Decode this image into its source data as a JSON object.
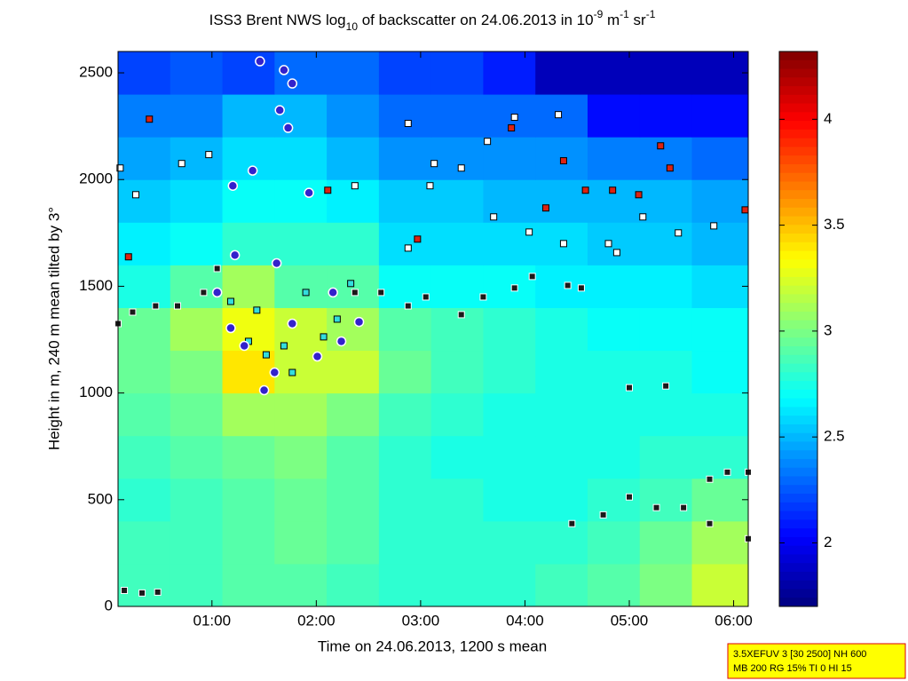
{
  "chart_data": {
    "type": "heatmap",
    "title_parts": [
      "ISS3 Brent NWS log",
      "10",
      " of backscatter on 24.06.2013 in 10",
      "-9",
      " m",
      "-1",
      " sr",
      "-1"
    ],
    "xlabel": "Time on 24.06.2013, 1200 s mean",
    "ylabel": "Height in m, 240 m mean tilted by 3°",
    "xlim": [
      0.1,
      6.14
    ],
    "ylim": [
      0,
      2600
    ],
    "xticks": [
      {
        "value": 1,
        "label": "01:00"
      },
      {
        "value": 2,
        "label": "02:00"
      },
      {
        "value": 3,
        "label": "03:00"
      },
      {
        "value": 4,
        "label": "04:00"
      },
      {
        "value": 5,
        "label": "05:00"
      },
      {
        "value": 6,
        "label": "06:00"
      }
    ],
    "yticks": [
      0,
      500,
      1000,
      1500,
      2000,
      2500
    ],
    "colormap": "jet",
    "clim": [
      1.7,
      4.32
    ],
    "cticks": [
      2,
      2.5,
      3,
      3.5,
      4
    ],
    "x_edges": [
      0.1,
      0.6,
      1.1,
      1.6,
      2.1,
      2.6,
      3.1,
      3.6,
      4.1,
      4.6,
      5.1,
      5.6,
      6.14
    ],
    "y_edges": [
      0,
      200,
      400,
      600,
      800,
      1000,
      1200,
      1400,
      1600,
      1800,
      2000,
      2200,
      2400,
      2600
    ],
    "z": [
      [
        2.85,
        2.85,
        2.9,
        2.9,
        2.85,
        2.8,
        2.8,
        2.8,
        2.85,
        2.9,
        3.0,
        3.2
      ],
      [
        2.85,
        2.85,
        2.9,
        2.95,
        2.9,
        2.8,
        2.8,
        2.8,
        2.8,
        2.85,
        2.95,
        3.1
      ],
      [
        2.8,
        2.85,
        2.9,
        2.95,
        2.9,
        2.8,
        2.8,
        2.75,
        2.75,
        2.8,
        2.85,
        2.95
      ],
      [
        2.85,
        2.9,
        2.95,
        3.0,
        2.9,
        2.8,
        2.75,
        2.75,
        2.75,
        2.75,
        2.8,
        2.8
      ],
      [
        2.9,
        2.95,
        3.1,
        3.1,
        3.0,
        2.85,
        2.8,
        2.75,
        2.75,
        2.75,
        2.75,
        2.75
      ],
      [
        2.95,
        3.0,
        3.4,
        3.2,
        3.2,
        2.95,
        2.85,
        2.8,
        2.75,
        2.75,
        2.75,
        2.7
      ],
      [
        2.95,
        3.1,
        3.3,
        3.2,
        3.1,
        2.9,
        2.85,
        2.8,
        2.75,
        2.7,
        2.7,
        2.7
      ],
      [
        2.75,
        2.9,
        3.1,
        2.9,
        2.9,
        2.7,
        2.7,
        2.7,
        2.65,
        2.65,
        2.65,
        2.6
      ],
      [
        2.65,
        2.7,
        2.8,
        2.8,
        2.8,
        2.6,
        2.6,
        2.6,
        2.6,
        2.55,
        2.55,
        2.5
      ],
      [
        2.55,
        2.6,
        2.7,
        2.7,
        2.65,
        2.55,
        2.55,
        2.5,
        2.5,
        2.5,
        2.5,
        2.45
      ],
      [
        2.45,
        2.5,
        2.6,
        2.6,
        2.5,
        2.4,
        2.4,
        2.4,
        2.4,
        2.35,
        2.35,
        2.3
      ],
      [
        2.35,
        2.35,
        2.5,
        2.5,
        2.4,
        2.3,
        2.3,
        2.3,
        2.3,
        2.05,
        2.05,
        2.05
      ],
      [
        2.2,
        2.25,
        2.2,
        2.3,
        2.3,
        2.2,
        2.2,
        2.1,
        1.85,
        1.85,
        1.85,
        1.85
      ]
    ],
    "series": [
      {
        "marker": "square",
        "color": "#1a1a1a",
        "edgecolor": "#ffffff",
        "x": [
          0.1,
          0.24,
          0.46,
          0.67,
          0.92,
          1.05,
          2.37,
          2.62,
          2.88,
          3.05,
          3.39,
          3.6,
          3.9,
          4.07,
          4.41,
          4.54,
          4.45,
          4.75,
          5.0,
          5.26,
          5.52,
          5.77,
          6.14,
          5.77,
          5.94,
          6.14,
          5.0,
          5.35,
          0.16,
          0.33,
          0.48
        ],
        "values": [
          1325,
          1379,
          1408,
          1408,
          1471,
          1583,
          1471,
          1471,
          1408,
          1450,
          1367,
          1450,
          1492,
          1546,
          1504,
          1492,
          388,
          429,
          513,
          463,
          463,
          388,
          317,
          596,
          629,
          629,
          1025,
          1033,
          75,
          63,
          67
        ]
      },
      {
        "marker": "square",
        "color": "#ffffff",
        "edgecolor": "#000000",
        "x": [
          0.12,
          0.71,
          0.97,
          0.27,
          2.88,
          3.13,
          3.39,
          3.64,
          3.9,
          4.32,
          3.7,
          4.04,
          4.37,
          4.8,
          5.13,
          5.47,
          5.81,
          4.88,
          2.88,
          3.09,
          2.37
        ],
        "values": [
          2054,
          2075,
          2117,
          1929,
          2263,
          2075,
          2054,
          2179,
          2292,
          2304,
          1825,
          1754,
          1700,
          1700,
          1825,
          1750,
          1783,
          1658,
          1679,
          1971,
          1971
        ]
      },
      {
        "marker": "square",
        "color": "#dd2211",
        "edgecolor": "#000000",
        "x": [
          0.2,
          0.4,
          4.37,
          3.87,
          4.58,
          4.84,
          5.09,
          5.3,
          5.39,
          6.11,
          4.2,
          2.97,
          2.11
        ],
        "values": [
          1638,
          2283,
          2088,
          2242,
          1950,
          1950,
          1929,
          2158,
          2054,
          1858,
          1867,
          1721,
          1950
        ]
      },
      {
        "marker": "square",
        "color": "#33dddd",
        "edgecolor": "#000000",
        "x": [
          1.18,
          1.35,
          1.52,
          1.69,
          1.9,
          2.07,
          2.2,
          2.33,
          1.77,
          1.43
        ],
        "values": [
          1429,
          1242,
          1179,
          1221,
          1471,
          1263,
          1346,
          1513,
          1096,
          1388
        ]
      },
      {
        "marker": "circle",
        "color": "#3322cc",
        "edgecolor": "#ffffff",
        "x": [
          1.46,
          1.69,
          1.77,
          1.65,
          1.73,
          1.39,
          1.2,
          1.93,
          1.22,
          1.05,
          1.18,
          1.31,
          1.5,
          1.6,
          1.77,
          2.01,
          2.16,
          2.24,
          2.41,
          1.62
        ],
        "values": [
          2554,
          2513,
          2450,
          2325,
          2242,
          2042,
          1971,
          1938,
          1646,
          1471,
          1304,
          1221,
          1013,
          1096,
          1325,
          1171,
          1471,
          1242,
          1333,
          1608
        ]
      }
    ]
  },
  "annotation": {
    "lines": [
      "3.5XEFUV 3 [30 2500] NH 600",
      "MB 200 RG 15% TI 0 HI 15"
    ]
  }
}
